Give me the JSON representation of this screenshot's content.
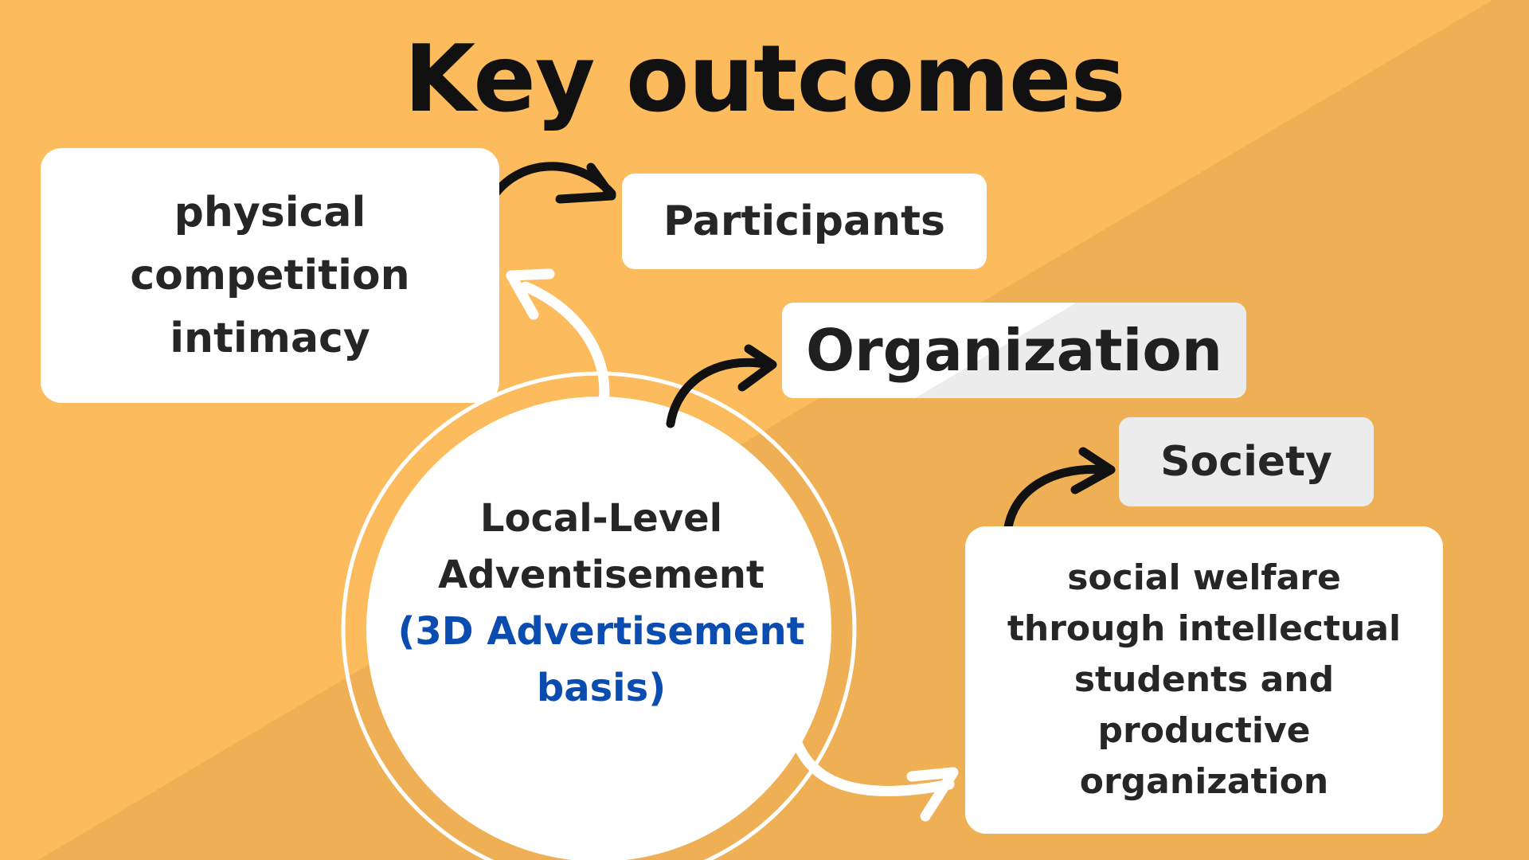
{
  "title": "Key outcomes",
  "center": {
    "line1": "Local-Level\nAdventisement",
    "line2": "(3D Advertisement\nbasis)"
  },
  "cards": {
    "physical": "physical\ncompetition\nintimacy",
    "participants": "Participants",
    "organization": "Organization",
    "society": "Society",
    "welfare": "social welfare\nthrough intellectual\nstudents and\nproductive\norganization"
  },
  "colors": {
    "background_top": "#fcbb5c",
    "background_bottom": "#efb055",
    "card": "#ffffff",
    "accent_text": "#0a4cb0"
  }
}
